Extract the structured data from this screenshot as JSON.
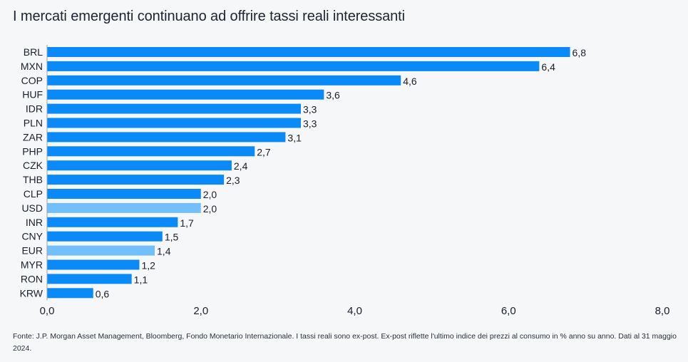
{
  "chart_data": {
    "type": "bar",
    "orientation": "horizontal",
    "title": "I mercati emergenti continuano ad offrire tassi reali interessanti",
    "categories": [
      "BRL",
      "MXN",
      "COP",
      "HUF",
      "IDR",
      "PLN",
      "ZAR",
      "PHP",
      "CZK",
      "THB",
      "CLP",
      "USD",
      "INR",
      "CNY",
      "EUR",
      "MYR",
      "RON",
      "KRW"
    ],
    "values": [
      6.8,
      6.4,
      4.6,
      3.6,
      3.3,
      3.3,
      3.1,
      2.7,
      2.4,
      2.3,
      2.0,
      2.0,
      1.7,
      1.5,
      1.4,
      1.2,
      1.1,
      0.6
    ],
    "value_labels": [
      "6,8",
      "6,4",
      "4,6",
      "3,6",
      "3,3",
      "3,3",
      "3,1",
      "2,7",
      "2,4",
      "2,3",
      "2,0",
      "2,0",
      "1,7",
      "1,5",
      "1,4",
      "1,2",
      "1,1",
      "0,6"
    ],
    "highlighted": [
      "USD",
      "EUR"
    ],
    "xlim": [
      0,
      8
    ],
    "xticks": [
      0,
      2,
      4,
      6,
      8
    ],
    "xtick_labels": [
      "0,0",
      "2,0",
      "4,0",
      "6,0",
      "8,0"
    ],
    "xlabel": "",
    "ylabel": "",
    "grid": false,
    "colors": {
      "bar": "#0a8af6",
      "highlight": "#72bffa"
    }
  },
  "footnote": "Fonte: J.P. Morgan Asset Management, Bloomberg, Fondo Monetario Internazionale. I tassi reali sono ex-post. Ex-post riflette l'ultimo indice dei prezzi al consumo in % anno su anno. Dati al 31 maggio 2024."
}
